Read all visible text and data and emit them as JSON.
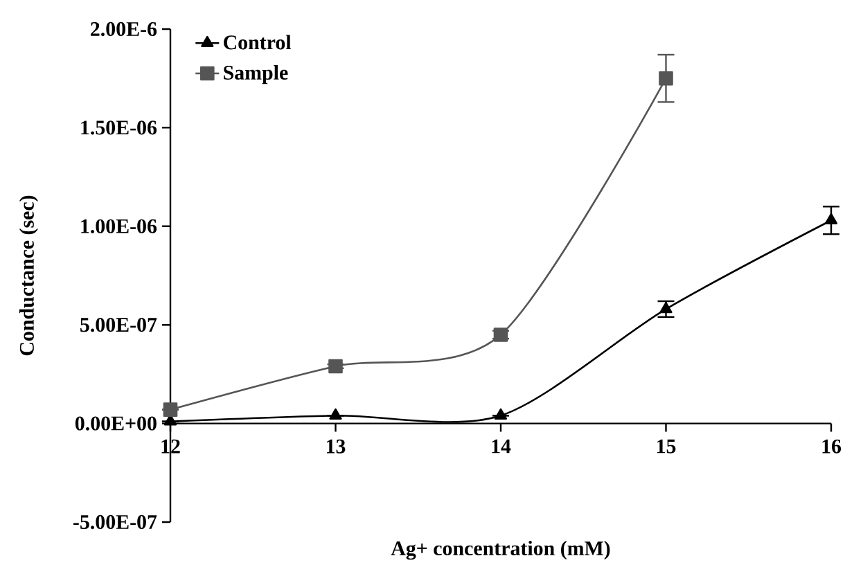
{
  "chart_data": {
    "type": "line",
    "xlabel": "Ag+ concentration (mM)",
    "ylabel": "Conductance (sec)",
    "x": [
      12,
      13,
      14,
      15,
      16
    ],
    "series": [
      {
        "name": "Control",
        "color": "#000000",
        "marker": "triangle",
        "values": [
          1e-08,
          4e-08,
          4e-08,
          5.8e-07,
          1.03e-06
        ],
        "errors": [
          null,
          null,
          null,
          4e-08,
          7e-08
        ]
      },
      {
        "name": "Sample",
        "color": "#555555",
        "marker": "square",
        "values": [
          7e-08,
          2.9e-07,
          4.5e-07,
          1.75e-06,
          null
        ],
        "errors": [
          null,
          1e-08,
          2e-08,
          1.2e-07,
          null
        ]
      }
    ],
    "xlim": [
      12,
      16
    ],
    "xticks": [
      12,
      13,
      14,
      15,
      16
    ],
    "ylim": [
      -5e-07,
      2e-06
    ],
    "yticks": [
      {
        "value": -5e-07,
        "label": "-5.00E-07"
      },
      {
        "value": 0,
        "label": "0.00E+00"
      },
      {
        "value": 5e-07,
        "label": "5.00E-07"
      },
      {
        "value": 1e-06,
        "label": "1.00E-06"
      },
      {
        "value": 1.5e-06,
        "label": "1.50E-06"
      },
      {
        "value": 2e-06,
        "label": "2.00E-6"
      }
    ],
    "legend": "top left"
  }
}
